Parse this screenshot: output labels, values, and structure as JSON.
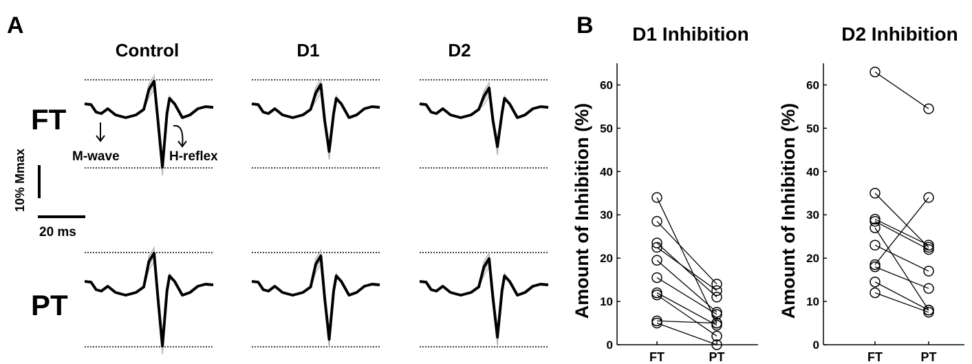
{
  "panel_a": {
    "letter": "A",
    "columns": [
      "Control",
      "D1",
      "D2"
    ],
    "rows": [
      "FT",
      "PT"
    ],
    "annotations": {
      "m_wave": "M-wave",
      "h_reflex": "H-reflex"
    },
    "scale_bar": {
      "vertical": "10% Mmax",
      "horizontal": "20 ms"
    }
  },
  "panel_b": {
    "letter": "B"
  },
  "chart_data": [
    {
      "type": "line",
      "title": "D1 Inhibition",
      "ylabel": "Amount of Inhibition (%)",
      "xlabel": "",
      "categories": [
        "FT",
        "PT"
      ],
      "ylim": [
        0,
        65
      ],
      "yticks": [
        0,
        10,
        20,
        30,
        40,
        50,
        60
      ],
      "series": [
        {
          "values": [
            34,
            5
          ]
        },
        {
          "values": [
            28.5,
            14
          ]
        },
        {
          "values": [
            23.5,
            11
          ]
        },
        {
          "values": [
            22.5,
            12.5
          ]
        },
        {
          "values": [
            19.5,
            7.5
          ]
        },
        {
          "values": [
            15.5,
            7
          ]
        },
        {
          "values": [
            12,
            4.5
          ]
        },
        {
          "values": [
            11.5,
            2
          ]
        },
        {
          "values": [
            5.5,
            5
          ]
        },
        {
          "values": [
            5,
            0
          ]
        }
      ]
    },
    {
      "type": "line",
      "title": "D2 Inhibition",
      "ylabel": "Amount of Inhibition (%)",
      "xlabel": "",
      "categories": [
        "FT",
        "PT"
      ],
      "ylim": [
        0,
        65
      ],
      "yticks": [
        0,
        10,
        20,
        30,
        40,
        50,
        60
      ],
      "series": [
        {
          "values": [
            63,
            54.5
          ]
        },
        {
          "values": [
            35,
            22.5
          ]
        },
        {
          "values": [
            29,
            23
          ]
        },
        {
          "values": [
            28.5,
            22
          ]
        },
        {
          "values": [
            27,
            8
          ]
        },
        {
          "values": [
            23,
            17
          ]
        },
        {
          "values": [
            18.5,
            34
          ]
        },
        {
          "values": [
            18,
            13
          ]
        },
        {
          "values": [
            14.5,
            8
          ]
        },
        {
          "values": [
            12,
            7.5
          ]
        }
      ]
    }
  ]
}
